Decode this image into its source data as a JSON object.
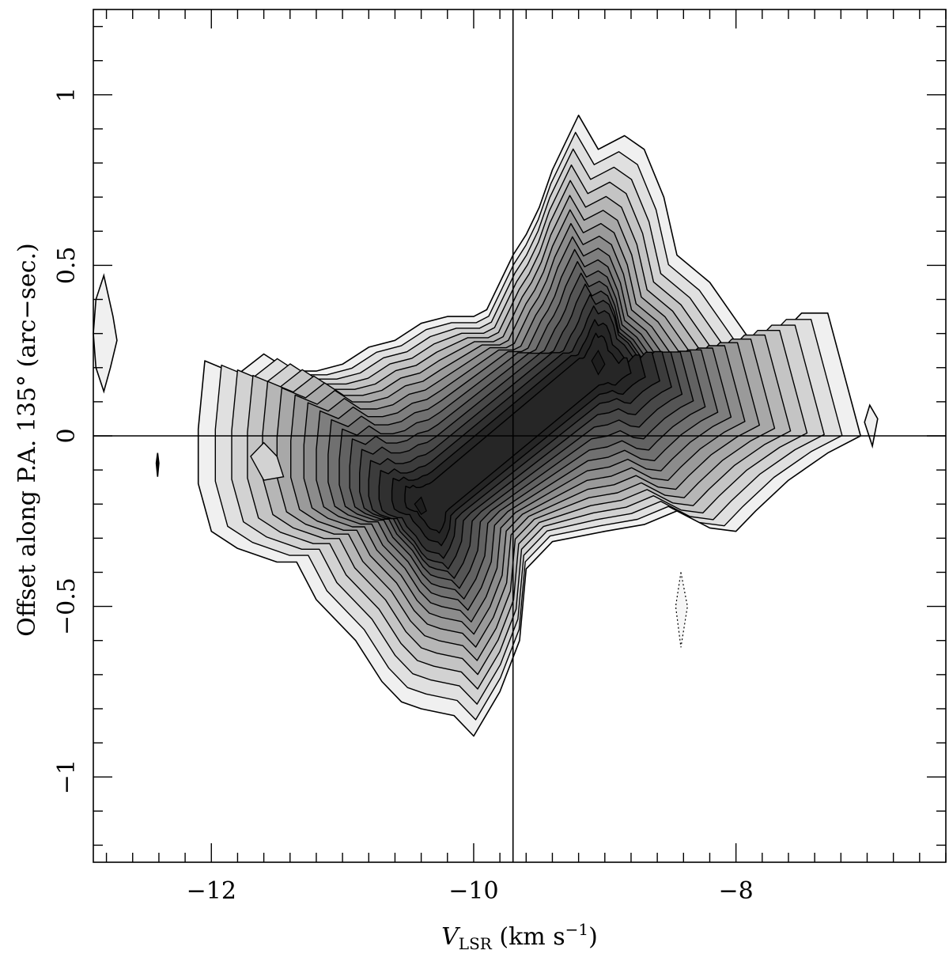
{
  "chart_data": {
    "type": "contour",
    "xlabel_main": "V",
    "xlabel_sub": "LSR",
    "xlabel_unit_pre": " (km s",
    "xlabel_unit_exp": "−1",
    "xlabel_unit_post": ")",
    "ylabel": "Offset along P.A. 135° (arc−sec.)",
    "xlim": [
      -12.9,
      -6.4
    ],
    "ylim": [
      -1.25,
      1.25
    ],
    "xticks_major": [
      -12,
      -10,
      -8
    ],
    "xtick_labels": [
      "−12",
      "−10",
      "−8"
    ],
    "yticks_major": [
      -1,
      -0.5,
      0,
      0.5,
      1
    ],
    "ytick_labels": [
      "−1",
      "−0.5",
      "0",
      "0.5",
      "1"
    ],
    "crosshair": {
      "x": -9.7,
      "y": 0
    },
    "fill_colors": [
      "#f0f0f0",
      "#e0e0e0",
      "#d2d2d2",
      "#c4c4c4",
      "#b6b6b6",
      "#a8a8a8",
      "#9a9a9a",
      "#8c8c8c",
      "#7e7e7e",
      "#707070",
      "#626262",
      "#555555",
      "#484848",
      "#3c3c3c",
      "#303030",
      "#262626"
    ],
    "contours": {
      "envelope": [
        [
          -12.05,
          0.22
        ],
        [
          -11.8,
          0.18
        ],
        [
          -11.6,
          0.24
        ],
        [
          -11.4,
          0.19
        ],
        [
          -11.2,
          0.19
        ],
        [
          -11.0,
          0.21
        ],
        [
          -10.8,
          0.26
        ],
        [
          -10.6,
          0.28
        ],
        [
          -10.4,
          0.33
        ],
        [
          -10.2,
          0.35
        ],
        [
          -10.0,
          0.35
        ],
        [
          -9.9,
          0.37
        ],
        [
          -9.7,
          0.53
        ],
        [
          -9.6,
          0.59
        ],
        [
          -9.5,
          0.67
        ],
        [
          -9.4,
          0.78
        ],
        [
          -9.3,
          0.86
        ],
        [
          -9.2,
          0.94
        ],
        [
          -9.05,
          0.84
        ],
        [
          -8.85,
          0.88
        ],
        [
          -8.7,
          0.84
        ],
        [
          -8.55,
          0.7
        ],
        [
          -8.45,
          0.53
        ],
        [
          -8.2,
          0.45
        ],
        [
          -8.0,
          0.34
        ],
        [
          -7.8,
          0.23
        ],
        [
          -7.65,
          0.3
        ],
        [
          -7.5,
          0.36
        ],
        [
          -7.3,
          0.36
        ],
        [
          -7.05,
          0.0
        ],
        [
          -7.3,
          -0.05
        ],
        [
          -7.6,
          -0.13
        ],
        [
          -7.85,
          -0.22
        ],
        [
          -8.0,
          -0.28
        ],
        [
          -8.2,
          -0.27
        ],
        [
          -8.45,
          -0.22
        ],
        [
          -8.7,
          -0.26
        ],
        [
          -9.0,
          -0.28
        ],
        [
          -9.4,
          -0.31
        ],
        [
          -9.6,
          -0.39
        ],
        [
          -9.65,
          -0.6
        ],
        [
          -9.8,
          -0.75
        ],
        [
          -10.0,
          -0.88
        ],
        [
          -10.15,
          -0.82
        ],
        [
          -10.4,
          -0.8
        ],
        [
          -10.55,
          -0.78
        ],
        [
          -10.7,
          -0.72
        ],
        [
          -10.9,
          -0.6
        ],
        [
          -11.2,
          -0.48
        ],
        [
          -11.35,
          -0.37
        ],
        [
          -11.5,
          -0.37
        ],
        [
          -11.8,
          -0.33
        ],
        [
          -12.0,
          -0.28
        ],
        [
          -12.1,
          -0.14
        ],
        [
          -12.1,
          0.02
        ],
        [
          -12.05,
          0.22
        ]
      ],
      "blob_left": [
        [
          -12.82,
          0.47
        ],
        [
          -12.75,
          0.35
        ],
        [
          -12.72,
          0.28
        ],
        [
          -12.77,
          0.2
        ],
        [
          -12.82,
          0.13
        ],
        [
          -12.88,
          0.2
        ],
        [
          -12.9,
          0.3
        ],
        [
          -12.88,
          0.4
        ]
      ],
      "blob_right": [
        [
          -6.98,
          0.09
        ],
        [
          -6.92,
          0.05
        ],
        [
          -6.96,
          -0.03
        ],
        [
          -7.02,
          0.04
        ]
      ],
      "blob_small_left": [
        [
          -12.41,
          -0.05
        ],
        [
          -12.4,
          -0.08
        ],
        [
          -12.41,
          -0.12
        ],
        [
          -12.42,
          -0.08
        ]
      ],
      "blob_negative": [
        [
          -8.42,
          -0.4
        ],
        [
          -8.37,
          -0.5
        ],
        [
          -8.42,
          -0.62
        ],
        [
          -8.46,
          -0.5
        ]
      ],
      "left_lobe_inner": [
        [
          -11.6,
          -0.02
        ],
        [
          -11.5,
          -0.06
        ],
        [
          -11.45,
          -0.12
        ],
        [
          -11.6,
          -0.13
        ],
        [
          -11.7,
          -0.06
        ]
      ],
      "peak_lower_center": [
        -10.3,
        -0.2
      ],
      "peak_upper_center": [
        -9.05,
        0.21
      ],
      "ridge_levels": 17
    }
  }
}
